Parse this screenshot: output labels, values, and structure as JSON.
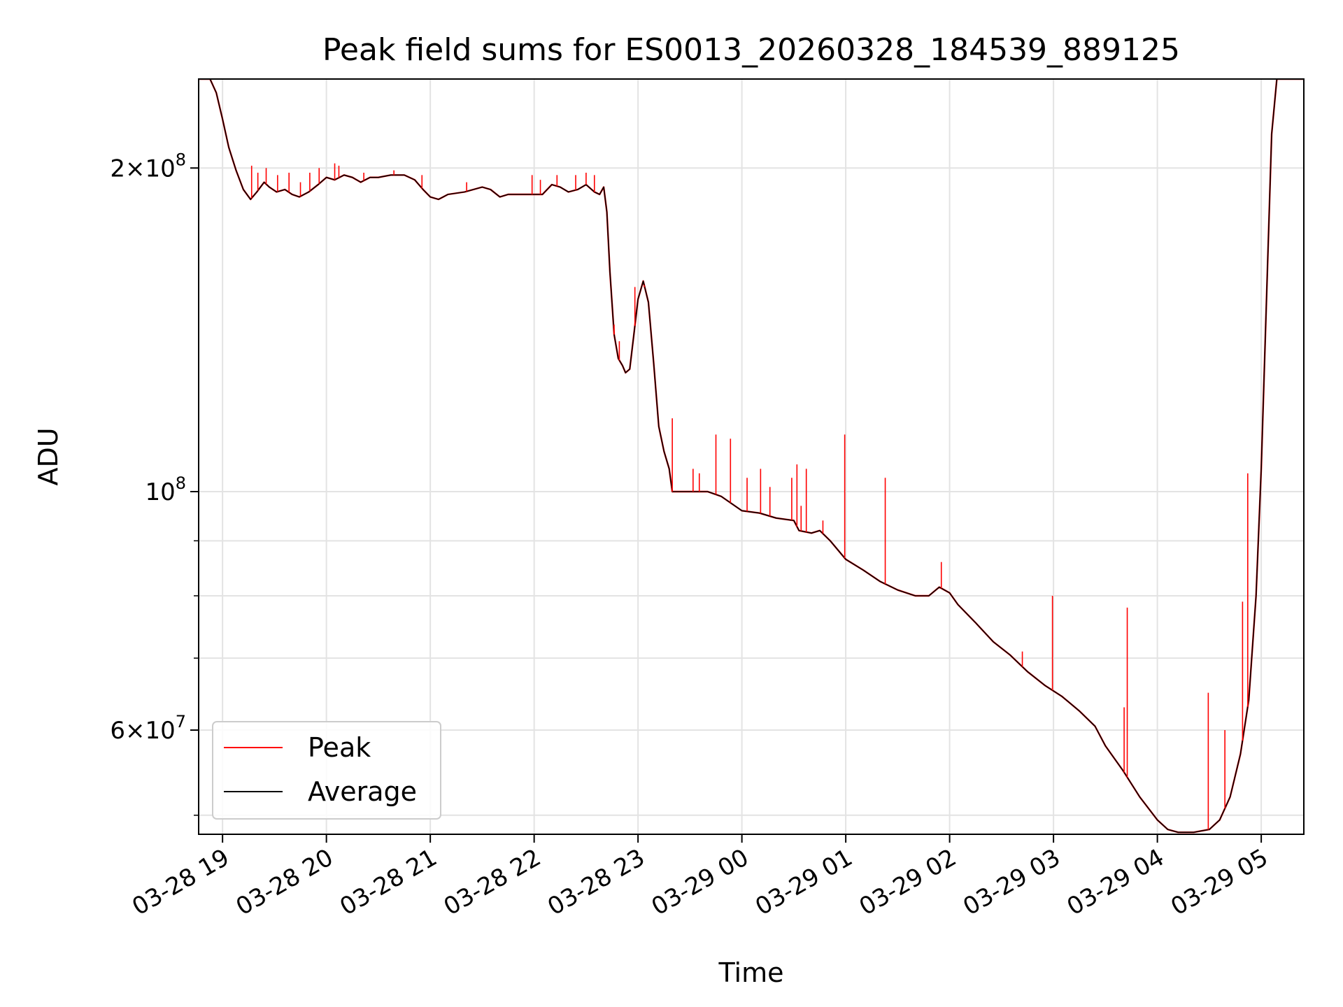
{
  "chart_data": {
    "type": "line",
    "title": "Peak field sums for ES0013_20260328_184539_889125",
    "xlabel": "Time",
    "ylabel": "ADU",
    "y_scale": "log",
    "grid": true,
    "legend_position": "lower-left",
    "xlim": [
      18.77,
      29.41
    ],
    "ylim": [
      48000000,
      242000000
    ],
    "x_ticks": [
      {
        "value": 19,
        "label": "03-28 19"
      },
      {
        "value": 20,
        "label": "03-28 20"
      },
      {
        "value": 21,
        "label": "03-28 21"
      },
      {
        "value": 22,
        "label": "03-28 22"
      },
      {
        "value": 23,
        "label": "03-28 23"
      },
      {
        "value": 24,
        "label": "03-29 00"
      },
      {
        "value": 25,
        "label": "03-29 01"
      },
      {
        "value": 26,
        "label": "03-29 02"
      },
      {
        "value": 27,
        "label": "03-29 03"
      },
      {
        "value": 28,
        "label": "03-29 04"
      },
      {
        "value": 29,
        "label": "03-29 05"
      }
    ],
    "y_major_ticks": [
      {
        "value": 200000000,
        "mantissa": "2",
        "exp": "8"
      },
      {
        "value": 100000000,
        "mantissa": "",
        "exp": "8"
      },
      {
        "value": 60000000,
        "mantissa": "6",
        "exp": "7"
      }
    ],
    "y_minor_ticks": [
      50000000,
      70000000,
      80000000,
      90000000
    ],
    "series": [
      {
        "name": "Peak",
        "color": "#ff0000",
        "spikes": [
          [
            19.28,
            201000000
          ],
          [
            19.34,
            198000000
          ],
          [
            19.42,
            200000000
          ],
          [
            19.53,
            197000000
          ],
          [
            19.64,
            198000000
          ],
          [
            19.75,
            194000000
          ],
          [
            19.84,
            198000000
          ],
          [
            19.93,
            200000000
          ],
          [
            20.08,
            202000000
          ],
          [
            20.12,
            201000000
          ],
          [
            20.36,
            198000000
          ],
          [
            20.65,
            199000000
          ],
          [
            20.92,
            197000000
          ],
          [
            21.35,
            194000000
          ],
          [
            21.98,
            197000000
          ],
          [
            22.06,
            195000000
          ],
          [
            22.22,
            197000000
          ],
          [
            22.4,
            197000000
          ],
          [
            22.5,
            198000000
          ],
          [
            22.58,
            197000000
          ],
          [
            22.77,
            143000000
          ],
          [
            22.82,
            138000000
          ],
          [
            22.97,
            155000000
          ],
          [
            23.06,
            155000000
          ],
          [
            23.33,
            117000000
          ],
          [
            23.53,
            105000000
          ],
          [
            23.59,
            104000000
          ],
          [
            23.75,
            113000000
          ],
          [
            23.89,
            112000000
          ],
          [
            24.05,
            103000000
          ],
          [
            24.18,
            105000000
          ],
          [
            24.27,
            101000000
          ],
          [
            24.48,
            103000000
          ],
          [
            24.53,
            106000000
          ],
          [
            24.57,
            97000000
          ],
          [
            24.62,
            105000000
          ],
          [
            24.78,
            94000000
          ],
          [
            24.99,
            113000000
          ],
          [
            25.38,
            103000000
          ],
          [
            25.92,
            86000000
          ],
          [
            26.7,
            71000000
          ],
          [
            26.99,
            80000000
          ],
          [
            27.68,
            63000000
          ],
          [
            27.71,
            78000000
          ],
          [
            28.49,
            65000000
          ],
          [
            28.65,
            60000000
          ],
          [
            28.82,
            79000000
          ],
          [
            28.87,
            104000000
          ]
        ]
      },
      {
        "name": "Average",
        "color": "#000000",
        "points": [
          [
            18.77,
            242000000
          ],
          [
            18.82,
            242000000
          ],
          [
            18.88,
            242000000
          ],
          [
            18.94,
            235000000
          ],
          [
            19.0,
            222000000
          ],
          [
            19.06,
            209000000
          ],
          [
            19.13,
            199000000
          ],
          [
            19.2,
            191000000
          ],
          [
            19.27,
            187000000
          ],
          [
            19.33,
            190000000
          ],
          [
            19.4,
            194000000
          ],
          [
            19.45,
            192000000
          ],
          [
            19.52,
            190000000
          ],
          [
            19.6,
            191000000
          ],
          [
            19.67,
            189000000
          ],
          [
            19.74,
            188000000
          ],
          [
            19.83,
            190000000
          ],
          [
            19.92,
            193000000
          ],
          [
            20.0,
            196000000
          ],
          [
            20.08,
            195000000
          ],
          [
            20.17,
            197000000
          ],
          [
            20.25,
            196000000
          ],
          [
            20.33,
            194000000
          ],
          [
            20.42,
            196000000
          ],
          [
            20.5,
            196000000
          ],
          [
            20.62,
            197000000
          ],
          [
            20.75,
            197000000
          ],
          [
            20.85,
            195000000
          ],
          [
            20.93,
            191000000
          ],
          [
            21.0,
            188000000
          ],
          [
            21.08,
            187000000
          ],
          [
            21.17,
            189000000
          ],
          [
            21.33,
            190000000
          ],
          [
            21.5,
            192000000
          ],
          [
            21.58,
            191000000
          ],
          [
            21.67,
            188000000
          ],
          [
            21.75,
            189000000
          ],
          [
            21.92,
            189000000
          ],
          [
            22.08,
            189000000
          ],
          [
            22.17,
            193000000
          ],
          [
            22.25,
            192000000
          ],
          [
            22.33,
            190000000
          ],
          [
            22.42,
            191000000
          ],
          [
            22.5,
            193000000
          ],
          [
            22.58,
            190000000
          ],
          [
            22.63,
            189000000
          ],
          [
            22.67,
            192000000
          ],
          [
            22.7,
            182000000
          ],
          [
            22.73,
            160000000
          ],
          [
            22.77,
            140000000
          ],
          [
            22.81,
            133000000
          ],
          [
            22.85,
            131000000
          ],
          [
            22.88,
            129000000
          ],
          [
            22.92,
            130000000
          ],
          [
            22.96,
            140000000
          ],
          [
            23.0,
            151000000
          ],
          [
            23.05,
            157000000
          ],
          [
            23.1,
            150000000
          ],
          [
            23.15,
            132000000
          ],
          [
            23.2,
            115000000
          ],
          [
            23.25,
            109000000
          ],
          [
            23.3,
            105000000
          ],
          [
            23.33,
            100000000
          ],
          [
            23.5,
            100000000
          ],
          [
            23.67,
            100000000
          ],
          [
            23.8,
            99000000
          ],
          [
            24.0,
            96000000
          ],
          [
            24.17,
            95500000
          ],
          [
            24.33,
            94500000
          ],
          [
            24.5,
            94000000
          ],
          [
            24.55,
            92000000
          ],
          [
            24.67,
            91500000
          ],
          [
            24.75,
            92000000
          ],
          [
            24.85,
            90000000
          ],
          [
            25.0,
            86500000
          ],
          [
            25.17,
            84500000
          ],
          [
            25.33,
            82500000
          ],
          [
            25.5,
            81000000
          ],
          [
            25.67,
            80000000
          ],
          [
            25.8,
            80000000
          ],
          [
            25.9,
            81500000
          ],
          [
            26.0,
            80500000
          ],
          [
            26.08,
            78500000
          ],
          [
            26.25,
            75500000
          ],
          [
            26.42,
            72500000
          ],
          [
            26.58,
            70500000
          ],
          [
            26.75,
            68000000
          ],
          [
            26.92,
            66000000
          ],
          [
            27.08,
            64500000
          ],
          [
            27.25,
            62500000
          ],
          [
            27.4,
            60500000
          ],
          [
            27.5,
            58000000
          ],
          [
            27.67,
            55000000
          ],
          [
            27.83,
            52000000
          ],
          [
            28.0,
            49500000
          ],
          [
            28.1,
            48500000
          ],
          [
            28.2,
            48200000
          ],
          [
            28.35,
            48200000
          ],
          [
            28.5,
            48500000
          ],
          [
            28.6,
            49500000
          ],
          [
            28.7,
            52000000
          ],
          [
            28.8,
            57000000
          ],
          [
            28.88,
            64000000
          ],
          [
            28.95,
            80000000
          ],
          [
            29.0,
            105000000
          ],
          [
            29.05,
            150000000
          ],
          [
            29.1,
            215000000
          ],
          [
            29.15,
            242000000
          ],
          [
            29.41,
            242000000
          ]
        ]
      }
    ]
  }
}
